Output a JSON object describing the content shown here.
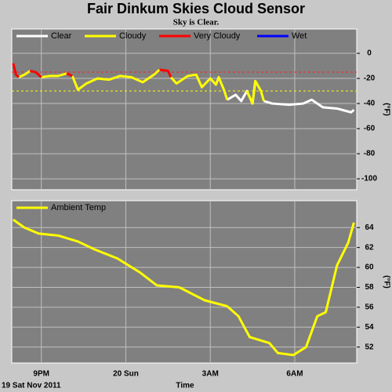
{
  "chart_data": [
    {
      "type": "line",
      "title": "Fair Dinkum Skies Cloud Sensor",
      "subtitle": "Sky is Clear.",
      "ylabel": "(°F)",
      "xlim": [
        19.95,
        32.2
      ],
      "xticks": [
        {
          "value": 21,
          "label": "9PM"
        },
        {
          "value": 24,
          "label": "20 Sun"
        },
        {
          "value": 27,
          "label": "3AM"
        },
        {
          "value": 30,
          "label": "6AM"
        }
      ],
      "ylim": [
        -108.7,
        19.4
      ],
      "yticks": [
        0,
        -20,
        -40,
        -60,
        -80,
        -100
      ],
      "grid": true,
      "thresholds": [
        {
          "value": -15,
          "color": "#ff2020"
        },
        {
          "value": -30,
          "color": "#ffff00"
        }
      ],
      "x": [
        20.0,
        20.1,
        20.2,
        20.4,
        20.6,
        20.8,
        21.0,
        21.3,
        21.6,
        21.9,
        22.0,
        22.1,
        22.3,
        22.6,
        23.0,
        23.4,
        23.8,
        24.2,
        24.6,
        25.0,
        25.2,
        25.5,
        25.6,
        25.8,
        26.2,
        26.5,
        26.7,
        27.0,
        27.2,
        27.3,
        27.5,
        27.6,
        27.9,
        28.1,
        28.3,
        28.5,
        28.6,
        28.8,
        28.9,
        29.2,
        29.8,
        30.3,
        30.6,
        31.0,
        31.5,
        32.0,
        32.1
      ],
      "series": [
        {
          "name": "Clear",
          "color": "#ffffff",
          "values": [
            null,
            null,
            null,
            null,
            null,
            null,
            null,
            null,
            null,
            null,
            null,
            null,
            null,
            null,
            null,
            null,
            null,
            null,
            null,
            null,
            null,
            null,
            null,
            null,
            null,
            null,
            null,
            null,
            null,
            null,
            null,
            -37,
            -33,
            -38,
            -30,
            -40,
            -22,
            null,
            -38,
            -40,
            -41,
            -40,
            -37,
            -43,
            -44,
            -47,
            -45
          ]
        },
        {
          "name": "Cloudy",
          "color": "#ffff00",
          "values": [
            null,
            null,
            -19,
            -17,
            -14,
            null,
            -19,
            -18,
            -18,
            -16,
            null,
            -18,
            -29,
            -24,
            -20,
            -21,
            -18,
            -19,
            -23,
            -17,
            -13,
            null,
            -19,
            -24,
            -18,
            -17,
            -27,
            -20,
            -25,
            -19,
            -30,
            -37,
            null,
            null,
            -30,
            -40,
            -22,
            -30,
            -38,
            null,
            null,
            null,
            null,
            null,
            null,
            null,
            null
          ]
        },
        {
          "name": "Very Cloudy",
          "color": "#ff0000",
          "values": [
            -8,
            -17,
            -19,
            null,
            -14,
            -15,
            -19,
            null,
            null,
            -16,
            -17,
            -18,
            null,
            null,
            null,
            null,
            null,
            null,
            null,
            null,
            -13,
            -14,
            -19,
            null,
            null,
            null,
            null,
            null,
            null,
            null,
            null,
            null,
            null,
            null,
            null,
            null,
            null,
            null,
            null,
            null,
            null,
            null,
            null,
            null,
            null,
            null,
            null
          ]
        },
        {
          "name": "Wet",
          "color": "#0000ff",
          "values": [
            null,
            null,
            null,
            null,
            null,
            null,
            null,
            null,
            null,
            null,
            null,
            null,
            null,
            null,
            null,
            null,
            null,
            null,
            null,
            null,
            null,
            null,
            null,
            null,
            null,
            null,
            null,
            null,
            null,
            null,
            null,
            null,
            null,
            null,
            null,
            null,
            null,
            null,
            null,
            null,
            null,
            null,
            null,
            null,
            null,
            null,
            null
          ]
        }
      ]
    },
    {
      "type": "line",
      "ylabel": "(°F)",
      "xlabel": "Time",
      "date_label": "19 Sat Nov 2011",
      "xlim": [
        19.95,
        32.2
      ],
      "xticks": [
        {
          "value": 21,
          "label": "9PM"
        },
        {
          "value": 24,
          "label": "20 Sun"
        },
        {
          "value": 27,
          "label": "3AM"
        },
        {
          "value": 30,
          "label": "6AM"
        }
      ],
      "ylim": [
        50.4,
        66.7
      ],
      "yticks": [
        52,
        54,
        56,
        58,
        60,
        62,
        64
      ],
      "grid": true,
      "x": [
        20.0,
        20.4,
        20.9,
        21.6,
        22.3,
        22.9,
        23.7,
        24.5,
        25.1,
        25.9,
        26.8,
        27.6,
        28.0,
        28.4,
        29.1,
        29.4,
        29.95,
        30.4,
        30.8,
        31.1,
        31.5,
        31.9,
        32.1
      ],
      "series": [
        {
          "name": "Ambient Temp",
          "color": "#ffff00",
          "values": [
            64.8,
            64.0,
            63.4,
            63.2,
            62.6,
            61.8,
            60.9,
            59.5,
            58.2,
            58.0,
            56.7,
            56.1,
            55.1,
            53.0,
            52.4,
            51.4,
            51.2,
            52.0,
            55.1,
            55.5,
            60.2,
            62.5,
            64.5
          ]
        }
      ]
    }
  ]
}
